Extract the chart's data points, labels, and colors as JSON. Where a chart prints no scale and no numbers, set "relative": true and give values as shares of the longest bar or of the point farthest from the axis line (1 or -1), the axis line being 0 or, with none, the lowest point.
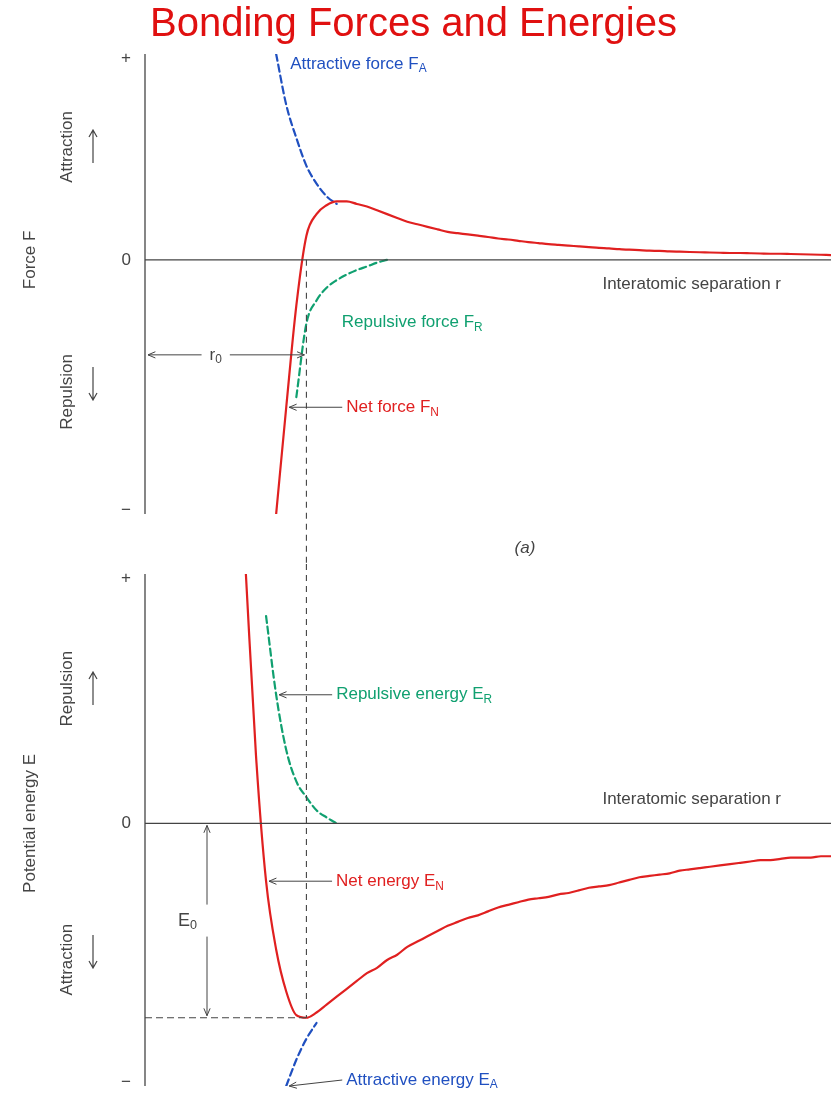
{
  "chart_data": [
    {
      "type": "line",
      "relative": true,
      "title": "Bonding Forces and Energies",
      "xlabel": "Interatomic separation r",
      "ylabel": "Force F",
      "categories": [
        null,
        null,
        null,
        null,
        null,
        null,
        null,
        null,
        null,
        null,
        null,
        null,
        null,
        null,
        null,
        null,
        null,
        null,
        null,
        null,
        null,
        null,
        null,
        null,
        null,
        null,
        null,
        null,
        null,
        null,
        null,
        null,
        null,
        null,
        null,
        null,
        null,
        null,
        null,
        null,
        null,
        null,
        null,
        null,
        null,
        null,
        null,
        null,
        null,
        null,
        null,
        null,
        null,
        null,
        null,
        null,
        null,
        null,
        null,
        null,
        null,
        null,
        null,
        null,
        null,
        null,
        null,
        null,
        null
      ],
      "series": [
        {
          "name": "Attractive force F$_{A}$",
          "color": "#2050c0",
          "line_style": "dashed",
          "values": [
            null,
            null,
            null,
            null,
            null,
            null,
            null,
            null,
            null,
            null,
            null,
            null,
            null,
            0.81,
            0.61,
            0.48,
            0.37,
            0.3,
            0.25,
            0.22,
            null,
            null,
            null,
            null,
            null,
            null,
            null,
            null,
            null,
            null,
            null,
            null,
            null,
            null,
            null,
            null,
            null,
            null,
            null,
            null,
            null,
            null,
            null,
            null,
            null,
            null,
            null,
            null,
            null,
            null,
            null,
            null,
            null,
            null,
            null,
            null,
            null,
            null,
            null,
            null,
            null,
            null,
            null,
            null,
            null,
            null,
            null,
            null,
            null
          ]
        },
        {
          "name": "Repulsive force F$_{R}$",
          "color": "#10a070",
          "line_style": "dashed",
          "values": [
            null,
            null,
            null,
            null,
            null,
            null,
            null,
            null,
            null,
            null,
            null,
            null,
            null,
            null,
            null,
            -0.54,
            -0.25,
            -0.16,
            -0.11,
            -0.08,
            -0.058,
            -0.04,
            -0.026,
            -0.011,
            0,
            null,
            null,
            null,
            null,
            null,
            null,
            null,
            null,
            null,
            null,
            null,
            null,
            null,
            null,
            null,
            null,
            null,
            null,
            null,
            null,
            null,
            null,
            null,
            null,
            null,
            null,
            null,
            null,
            null,
            null,
            null,
            null,
            null,
            null,
            null,
            null,
            null,
            null,
            null,
            null,
            null,
            null,
            null,
            null
          ]
        },
        {
          "name": "Net force F$_{N}$",
          "color": "#e02020",
          "line_style": "solid",
          "values": [
            null,
            null,
            null,
            null,
            null,
            null,
            null,
            null,
            null,
            null,
            null,
            null,
            null,
            -1.0,
            -0.58,
            -0.18,
            0.095,
            0.18,
            0.215,
            0.23,
            0.23,
            0.22,
            0.21,
            0.195,
            0.18,
            0.165,
            0.15,
            0.14,
            0.13,
            0.12,
            0.11,
            0.105,
            0.1,
            0.095,
            0.09,
            0.084,
            0.08,
            0.075,
            0.07,
            0.066,
            0.062,
            0.059,
            0.056,
            0.053,
            0.05,
            0.047,
            0.045,
            0.042,
            0.04,
            0.038,
            0.036,
            0.035,
            0.033,
            0.032,
            0.031,
            0.03,
            0.029,
            0.028,
            0.027,
            0.027,
            0.026,
            0.025,
            0.024,
            0.024,
            0.023,
            0.022,
            0.021,
            0.02,
            0.019
          ]
        }
      ],
      "annotations": [
        "+",
        "0",
        "−",
        "Attraction",
        "Repulsion",
        "r$_{0}$",
        "(a)"
      ]
    },
    {
      "type": "line",
      "relative": true,
      "xlabel": "Interatomic separation r",
      "ylabel": "Potential energy E",
      "categories": [
        null,
        null,
        null,
        null,
        null,
        null,
        null,
        null,
        null,
        null,
        null,
        null,
        null,
        null,
        null,
        null,
        null,
        null,
        null,
        null,
        null,
        null,
        null,
        null,
        null,
        null,
        null,
        null,
        null,
        null,
        null,
        null,
        null,
        null,
        null,
        null,
        null,
        null,
        null,
        null,
        null,
        null,
        null,
        null,
        null,
        null,
        null,
        null,
        null,
        null,
        null,
        null,
        null,
        null,
        null,
        null,
        null,
        null,
        null,
        null,
        null,
        null,
        null,
        null,
        null,
        null,
        null,
        null,
        null
      ],
      "series": [
        {
          "name": "Attractive energy E$_{A}$",
          "color": "#2050c0",
          "line_style": "dashed",
          "values": [
            null,
            null,
            null,
            null,
            null,
            null,
            null,
            null,
            null,
            null,
            null,
            null,
            null,
            null,
            -1,
            -0.9,
            -0.82,
            -0.76,
            null,
            null,
            null,
            null,
            null,
            null,
            null,
            null,
            null,
            null,
            null,
            null,
            null,
            null,
            null,
            null,
            null,
            null,
            null,
            null,
            null,
            null,
            null,
            null,
            null,
            null,
            null,
            null,
            null,
            null,
            null,
            null,
            null,
            null,
            null,
            null,
            null,
            null,
            null,
            null,
            null,
            null,
            null,
            null,
            null,
            null,
            null,
            null,
            null,
            null,
            null
          ]
        },
        {
          "name": "Repulsive energy E$_{R}$",
          "color": "#10a070",
          "line_style": "dashed",
          "values": [
            null,
            null,
            null,
            null,
            null,
            null,
            null,
            null,
            null,
            null,
            null,
            null,
            0.79,
            0.49,
            0.28,
            0.16,
            0.1,
            0.05,
            0.023,
            0,
            null,
            null,
            null,
            null,
            null,
            null,
            null,
            null,
            null,
            null,
            null,
            null,
            null,
            null,
            null,
            null,
            null,
            null,
            null,
            null,
            null,
            null,
            null,
            null,
            null,
            null,
            null,
            null,
            null,
            null,
            null,
            null,
            null,
            null,
            null,
            null,
            null,
            null,
            null,
            null,
            null,
            null,
            null,
            null,
            null,
            null,
            null,
            null,
            null
          ]
        },
        {
          "name": "Net energy E$_{N}$",
          "color": "#e02020",
          "line_style": "solid",
          "values": [
            null,
            null,
            null,
            null,
            null,
            null,
            null,
            null,
            null,
            null,
            0.95,
            0.26,
            -0.22,
            -0.48,
            -0.64,
            -0.73,
            -0.74,
            -0.72,
            -0.69,
            -0.66,
            -0.63,
            -0.6,
            -0.57,
            -0.55,
            -0.52,
            -0.5,
            -0.47,
            -0.45,
            -0.43,
            -0.41,
            -0.39,
            -0.375,
            -0.36,
            -0.35,
            -0.335,
            -0.32,
            -0.31,
            -0.3,
            -0.29,
            -0.285,
            -0.28,
            -0.27,
            -0.265,
            -0.255,
            -0.245,
            -0.24,
            -0.235,
            -0.225,
            -0.215,
            -0.205,
            -0.2,
            -0.195,
            -0.19,
            -0.18,
            -0.175,
            -0.17,
            -0.165,
            -0.16,
            -0.155,
            -0.15,
            -0.145,
            -0.14,
            -0.14,
            -0.135,
            -0.13,
            -0.13,
            -0.13,
            -0.125,
            -0.125
          ]
        }
      ],
      "ref_lines": [
        {
          "axis": "y",
          "value": -0.74,
          "color": "#444444",
          "line_style": "dashed"
        }
      ],
      "annotations": [
        "+",
        "0",
        "−",
        "Repulsion",
        "Attraction",
        "E$_{0}$"
      ]
    }
  ]
}
